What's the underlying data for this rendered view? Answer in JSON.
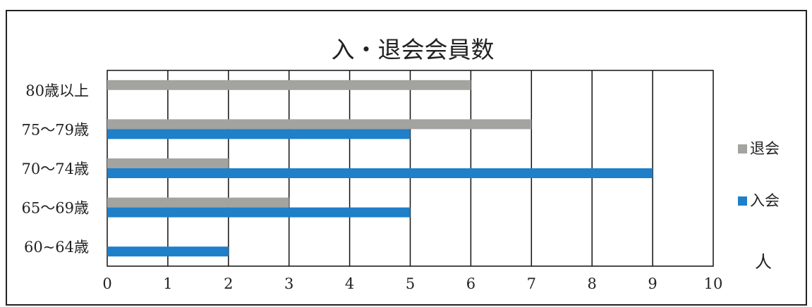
{
  "colors": {
    "withdraw": "#a3a3a0",
    "join": "#1f7fc9",
    "grid": "#111111",
    "frame": "#222222"
  },
  "chart_data": {
    "type": "bar",
    "orientation": "horizontal",
    "title": "入・退会会員数",
    "categories": [
      "80歳以上",
      "75～79歳",
      "70～74歳",
      "65～69歳",
      "60~64歳"
    ],
    "series": [
      {
        "name": "退会",
        "values": [
          6,
          7,
          2,
          3,
          0
        ]
      },
      {
        "name": "入会",
        "values": [
          0,
          5,
          9,
          5,
          2
        ]
      }
    ],
    "x_ticks": [
      "0",
      "1",
      "2",
      "3",
      "4",
      "5",
      "6",
      "7",
      "8",
      "9",
      "10"
    ],
    "xlim": [
      0,
      10
    ],
    "xlabel": "人",
    "grid": "vertical",
    "legend": "right"
  }
}
